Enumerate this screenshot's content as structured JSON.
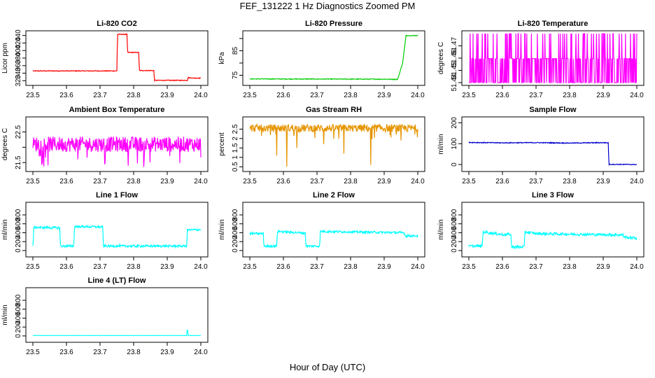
{
  "page": {
    "title": "FEF_131222  1 Hz Diagnostics Zoomed PM",
    "x_caption": "Hour of Day (UTC)"
  },
  "chart_data": [
    {
      "type": "line",
      "title": "Li-820 CO2",
      "ylabel": "Licor ppm",
      "color": "#ff0000",
      "xlim": [
        23.5,
        24.0
      ],
      "ylim": [
        315,
        445
      ],
      "xticks": [
        "23.5",
        "23.6",
        "23.7",
        "23.8",
        "23.9",
        "24.0"
      ],
      "yticks": [
        320,
        340,
        360,
        380,
        400,
        420,
        440
      ],
      "x": [
        23.5,
        23.75,
        23.752,
        23.78,
        23.782,
        23.815,
        23.817,
        23.86,
        23.862,
        23.96,
        23.962,
        23.98,
        24.0
      ],
      "y": [
        346,
        346,
        443,
        443,
        395,
        395,
        347,
        347,
        321,
        321,
        328,
        327,
        327
      ],
      "noise": 1
    },
    {
      "type": "line",
      "title": "Li-820 Pressure",
      "ylabel": "kPa",
      "color": "#00cc00",
      "xlim": [
        23.5,
        24.0
      ],
      "ylim": [
        72,
        92
      ],
      "xticks": [
        "23.5",
        "23.6",
        "23.7",
        "23.8",
        "23.9",
        "24.0"
      ],
      "yticks": [
        75,
        80,
        85,
        90
      ],
      "ytick_labels_show": [
        75,
        85
      ],
      "x": [
        23.5,
        23.91,
        23.94,
        23.955,
        23.965,
        24.0
      ],
      "y": [
        73.5,
        73.4,
        73.3,
        80,
        91.2,
        91.2
      ],
      "noise": 0.15
    },
    {
      "type": "line",
      "title": "Li-820 Temperature",
      "ylabel": "degrees C",
      "color": "#ff00ff",
      "xlim": [
        23.5,
        24.0
      ],
      "ylim": [
        51.44,
        51.48
      ],
      "xticks": [
        "23.5",
        "23.6",
        "23.7",
        "23.8",
        "23.9",
        "24.0"
      ],
      "yticks": [
        51.44,
        51.45,
        51.46,
        51.47
      ],
      "levels": [
        51.44,
        51.4596,
        51.48
      ],
      "pattern": "quantized"
    },
    {
      "type": "line",
      "title": "Ambient Box Temperature",
      "ylabel": "degrees C",
      "color": "#ff00ff",
      "xlim": [
        23.5,
        24.0
      ],
      "ylim": [
        21.3,
        22.9
      ],
      "xticks": [
        "23.5",
        "23.6",
        "23.7",
        "23.8",
        "23.9",
        "24.0"
      ],
      "yticks": [
        21.5,
        22.0,
        22.5
      ],
      "ytick_labels_show": [
        21.5,
        22.5
      ],
      "mean": 22.1,
      "noise": 0.25,
      "pattern": "noise"
    },
    {
      "type": "line",
      "title": "Gas Stream RH",
      "ylabel": "percent",
      "color": "#e69500",
      "xlim": [
        23.5,
        24.0
      ],
      "ylim": [
        0.4,
        3.0
      ],
      "xticks": [
        "23.5",
        "23.6",
        "23.7",
        "23.8",
        "23.9",
        "24.0"
      ],
      "yticks": [
        0.5,
        1.0,
        1.5,
        2.0,
        2.5
      ],
      "mean": 2.55,
      "noise": 0.2,
      "pattern": "noise",
      "dips": [
        [
          23.58,
          1.1
        ],
        [
          23.61,
          0.5
        ],
        [
          23.64,
          1.5
        ],
        [
          23.72,
          1.7
        ],
        [
          23.78,
          1.2
        ],
        [
          23.86,
          0.6
        ],
        [
          23.95,
          1.9
        ]
      ]
    },
    {
      "type": "line",
      "title": "Sample Flow",
      "ylabel": "ml/min",
      "color": "#0000cc",
      "xlim": [
        23.5,
        24.0
      ],
      "ylim": [
        -20,
        215
      ],
      "xticks": [
        "23.5",
        "23.6",
        "23.7",
        "23.8",
        "23.9",
        "24.0"
      ],
      "yticks": [
        0,
        100,
        200
      ],
      "x": [
        23.5,
        23.6,
        23.7,
        23.8,
        23.9,
        23.915,
        23.917,
        24.0
      ],
      "y": [
        106,
        104,
        105,
        103,
        105,
        104,
        1,
        0
      ],
      "noise": 2
    },
    {
      "type": "line",
      "title": "Line 1 Flow",
      "ylabel": "ml/min",
      "color": "#00ffff",
      "xlim": [
        23.5,
        24.0
      ],
      "ylim": [
        -80,
        1020
      ],
      "xticks": [
        "23.5",
        "23.6",
        "23.7",
        "23.8",
        "23.9",
        "24.0"
      ],
      "yticks": [
        0,
        200,
        400,
        600,
        800
      ],
      "x": [
        23.5,
        23.503,
        23.58,
        23.582,
        23.622,
        23.624,
        23.708,
        23.71,
        23.958,
        23.96,
        24.0
      ],
      "y": [
        100,
        520,
        510,
        100,
        100,
        540,
        530,
        100,
        100,
        460,
        470
      ],
      "noise": 25
    },
    {
      "type": "line",
      "title": "Line 2 Flow",
      "ylabel": "ml/min",
      "color": "#00ffff",
      "xlim": [
        23.5,
        24.0
      ],
      "ylim": [
        -80,
        1020
      ],
      "xticks": [
        "23.5",
        "23.6",
        "23.7",
        "23.8",
        "23.9",
        "24.0"
      ],
      "yticks": [
        0,
        200,
        400,
        600,
        800
      ],
      "x": [
        23.5,
        23.54,
        23.542,
        23.58,
        23.582,
        23.665,
        23.667,
        23.708,
        23.71,
        23.96,
        23.962,
        24.0
      ],
      "y": [
        380,
        380,
        100,
        100,
        430,
        390,
        100,
        100,
        430,
        400,
        330,
        330
      ],
      "noise": 25
    },
    {
      "type": "line",
      "title": "Line 3 Flow",
      "ylabel": "ml/min",
      "color": "#00ffff",
      "xlim": [
        23.5,
        24.0
      ],
      "ylim": [
        -80,
        1020
      ],
      "xticks": [
        "23.5",
        "23.6",
        "23.7",
        "23.8",
        "23.9",
        "24.0"
      ],
      "yticks": [
        0,
        200,
        400,
        600,
        800
      ],
      "x": [
        23.5,
        23.54,
        23.542,
        23.58,
        23.6,
        23.625,
        23.627,
        23.665,
        23.667,
        23.7,
        23.96,
        23.962,
        24.0
      ],
      "y": [
        100,
        100,
        420,
        380,
        360,
        360,
        80,
        80,
        420,
        380,
        350,
        300,
        280
      ],
      "noise": 30
    },
    {
      "type": "line",
      "title": "Line 4 (LT) Flow",
      "ylabel": "ml/min",
      "color": "#00ffff",
      "xlim": [
        23.5,
        24.0
      ],
      "ylim": [
        -80,
        1020
      ],
      "xticks": [
        "23.5",
        "23.6",
        "23.7",
        "23.8",
        "23.9",
        "24.0"
      ],
      "yticks": [
        0,
        200,
        400,
        600,
        800
      ],
      "x": [
        23.5,
        23.958,
        23.959,
        23.961,
        23.962,
        24.0
      ],
      "y": [
        10,
        10,
        130,
        130,
        10,
        10
      ],
      "noise": 2
    }
  ]
}
